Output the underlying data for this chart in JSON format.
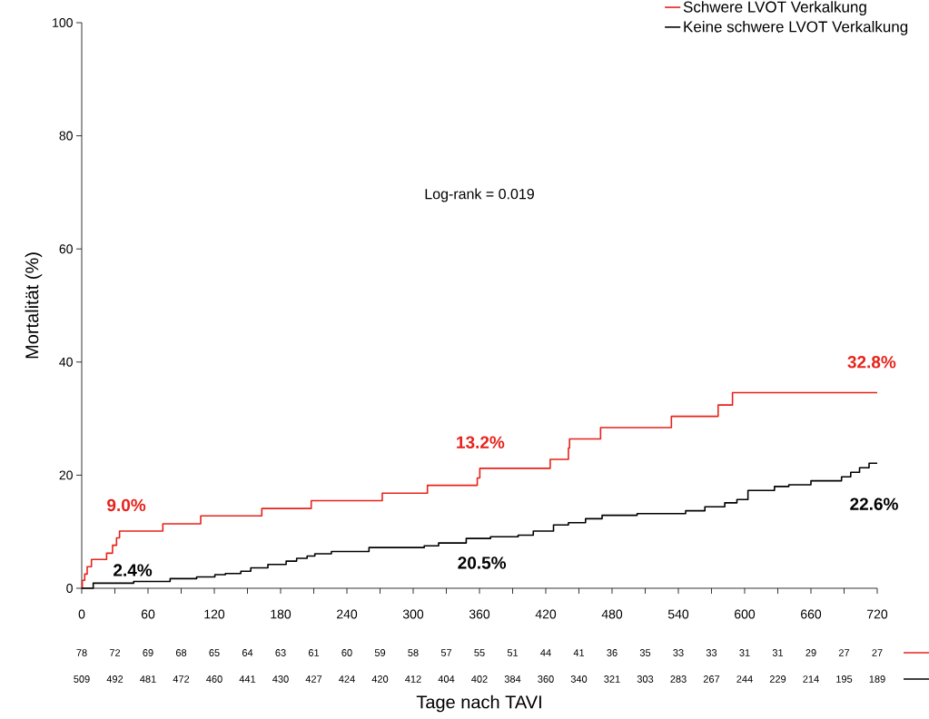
{
  "chart_data": {
    "type": "step",
    "xlabel": "Tage nach TAVI",
    "ylabel": "Mortalität (%)",
    "xlim": [
      0,
      720
    ],
    "ylim": [
      0,
      100
    ],
    "xticks": [
      0,
      {
        "value": 30,
        "label": null
      },
      60,
      {
        "value": 90,
        "label": null
      },
      120,
      {
        "value": 150,
        "label": null
      },
      180,
      {
        "value": 210,
        "label": null
      },
      240,
      {
        "value": 270,
        "label": null
      },
      300,
      {
        "value": 330,
        "label": null
      },
      360,
      {
        "value": 390,
        "label": null
      },
      420,
      {
        "value": 450,
        "label": null
      },
      480,
      {
        "value": 510,
        "label": null
      },
      540,
      {
        "value": 570,
        "label": null
      },
      600,
      {
        "value": 630,
        "label": null
      },
      660,
      {
        "value": 690,
        "label": null
      },
      720
    ],
    "yticks": [
      0,
      20,
      40,
      60,
      80,
      100
    ],
    "legend": "top right",
    "series": [
      {
        "name": "Schwere LVOT Verkalkung",
        "color": "#e8221b",
        "x": [
          0,
          0.5,
          2.7,
          4.9,
          8.8,
          22.5,
          27.9,
          31.5,
          34.2,
          73.4,
          107.7,
          163,
          207.7,
          272,
          312.9,
          358,
          360.3,
          424,
          440.5,
          441.5,
          469.6,
          533.7,
          576,
          589,
          720
        ],
        "values": [
          0,
          1.4,
          2.5,
          3.8,
          5.1,
          6.2,
          7.6,
          8.9,
          10.1,
          11.4,
          12.8,
          14.1,
          15.5,
          16.8,
          18.2,
          19.5,
          21.2,
          22.8,
          24.8,
          26.4,
          28.4,
          30.4,
          32.4,
          34.6,
          34.6
        ]
      },
      {
        "name": "Keine schwere LVOT Verkalkung",
        "color": "#000000",
        "x": [
          0,
          10.4,
          47,
          80,
          104,
          120.5,
          130,
          144,
          153,
          168.5,
          185,
          194.5,
          204,
          211,
          226,
          260,
          310,
          323,
          348,
          370,
          395,
          408.7,
          427,
          440.5,
          456,
          471,
          502.7,
          546.6,
          564,
          582,
          593,
          603,
          627,
          640,
          660,
          687.7,
          696,
          704,
          712.6,
          720
        ],
        "values": [
          0,
          0.9,
          1.2,
          1.7,
          2.0,
          2.4,
          2.6,
          3.0,
          3.6,
          4.2,
          4.8,
          5.3,
          5.7,
          6.1,
          6.5,
          7.2,
          7.5,
          8.0,
          8.8,
          9.1,
          9.4,
          10.1,
          11.2,
          11.6,
          12.3,
          12.9,
          13.2,
          13.7,
          14.4,
          15.1,
          15.7,
          17.3,
          18.0,
          18.3,
          19.0,
          19.7,
          20.5,
          21.3,
          22.1,
          22.1
        ]
      }
    ],
    "annotations": [
      "Log-rank = 0.019",
      "9.0%",
      "13.2%",
      "32.8%",
      "2.4%",
      "20.5%",
      "22.6%",
      "78",
      "72",
      "69",
      "68",
      "65",
      "64",
      "63",
      "61",
      "60",
      "59",
      "58",
      "57",
      "55",
      "51",
      "44",
      "41",
      "36",
      "35",
      "33",
      "33",
      "31",
      "31",
      "29",
      "27",
      "27",
      "509",
      "492",
      "481",
      "472",
      "460",
      "441",
      "430",
      "427",
      "424",
      "420",
      "412",
      "404",
      "402",
      "384",
      "360",
      "340",
      "321",
      "303",
      "283",
      "267",
      "244",
      "229",
      "214",
      "195",
      "189"
    ]
  }
}
